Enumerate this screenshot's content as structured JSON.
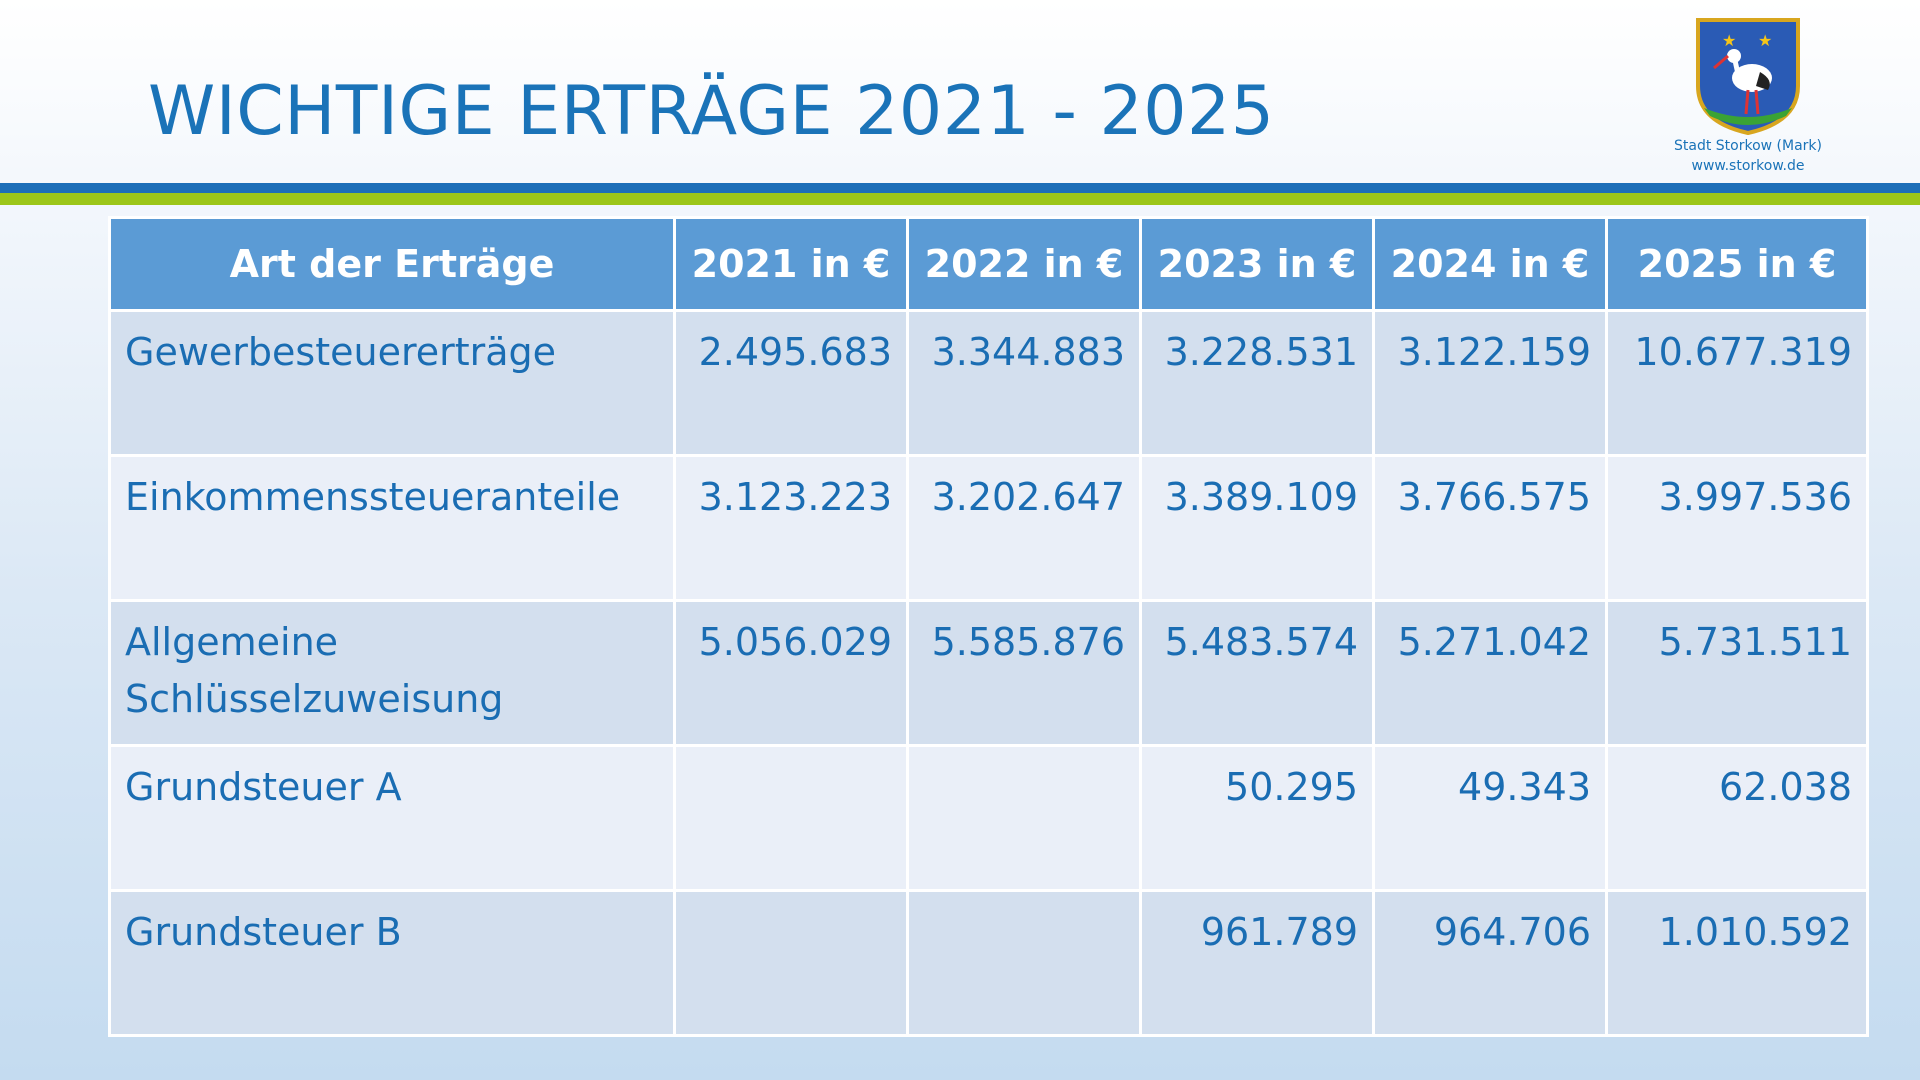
{
  "slide": {
    "title": "WICHTIGE ERTRÄGE 2021 - 2025"
  },
  "logo": {
    "line1": "Stadt Storkow (Mark)",
    "line2": "www.storkow.de",
    "icon": "coat-of-arms-stork"
  },
  "colors": {
    "accent_blue": "#1a73b8",
    "stripe_green": "#9cc61a",
    "header_bg": "#5b9bd5"
  },
  "table": {
    "headers": [
      "Art der Erträge",
      "2021 in €",
      "2022 in €",
      "2023 in €",
      "2024 in €",
      "2025 in €"
    ],
    "rows": [
      {
        "label": "Gewerbesteuererträge",
        "values": [
          "2.495.683",
          "3.344.883",
          "3.228.531",
          "3.122.159",
          "10.677.319"
        ]
      },
      {
        "label": "Einkommenssteueranteile",
        "values": [
          "3.123.223",
          "3.202.647",
          "3.389.109",
          "3.766.575",
          "3.997.536"
        ]
      },
      {
        "label": "Allgemeine Schlüsselzuweisung",
        "values": [
          "5.056.029",
          "5.585.876",
          "5.483.574",
          "5.271.042",
          "5.731.511"
        ]
      },
      {
        "label": "Grundsteuer A",
        "values": [
          "",
          "",
          "50.295",
          "49.343",
          "62.038"
        ]
      },
      {
        "label": "Grundsteuer B",
        "values": [
          "",
          "",
          "961.789",
          "964.706",
          "1.010.592"
        ]
      }
    ]
  }
}
